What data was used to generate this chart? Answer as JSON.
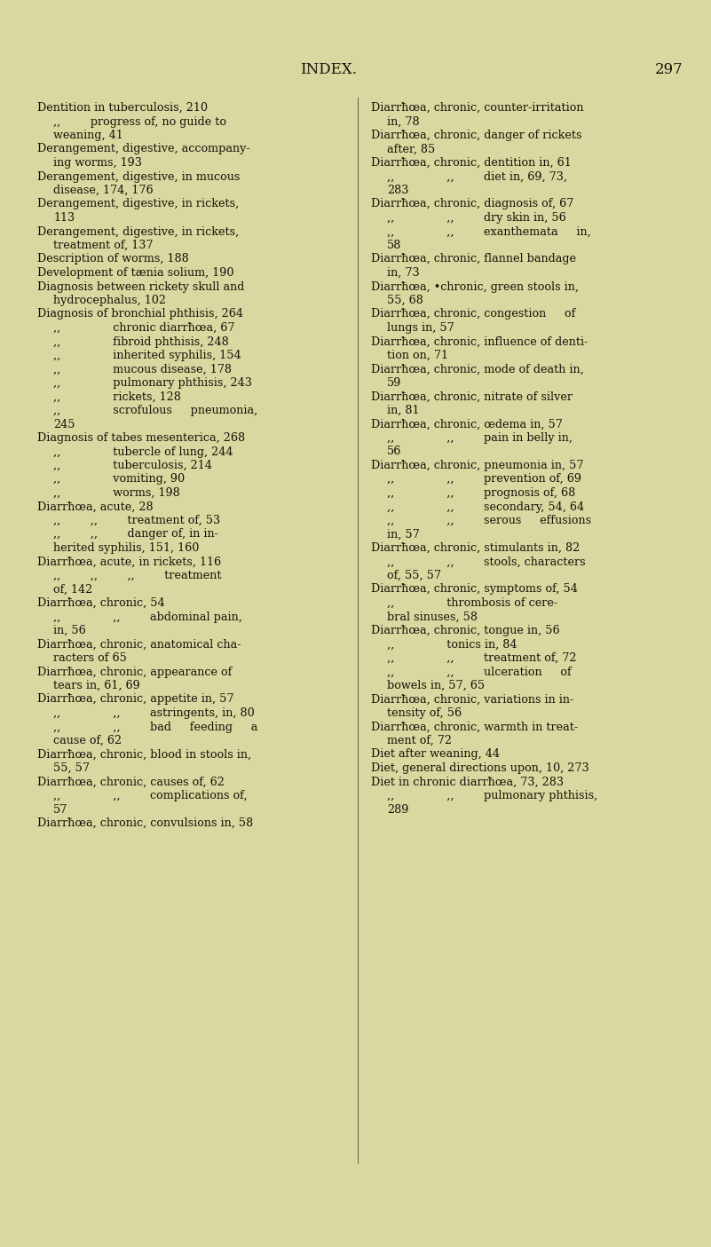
{
  "bg_color": "#d8d8a0",
  "text_color": "#1a1008",
  "title": "INDEX.",
  "page_num": "297",
  "title_fontsize": 12,
  "body_fontsize": 9.2,
  "left_col_lines": [
    [
      "Dentition in tuberculosis, 210",
      0
    ],
    [
      ",,    progress of, no guide to",
      1
    ],
    [
      "weaning, 41",
      1
    ],
    [
      "Derangement, digestive, accompany-",
      0
    ],
    [
      "ing worms, 193",
      1
    ],
    [
      "Derangement, digestive, in mucous",
      0
    ],
    [
      "disease, 174, 176",
      1
    ],
    [
      "Derangement, digestive, in rickets,",
      0
    ],
    [
      "113",
      1
    ],
    [
      "Derangement, digestive, in rickets,",
      0
    ],
    [
      "treatment of, 137",
      1
    ],
    [
      "Description of worms, 188",
      0
    ],
    [
      "Development of tænia solium, 190",
      0
    ],
    [
      "Diagnosis between rickety skull and",
      0
    ],
    [
      "hydrocephalus, 102",
      1
    ],
    [
      "Diagnosis of bronchial phthisis, 264",
      0
    ],
    [
      ",,      chronic diarrħœa, 67",
      1
    ],
    [
      ",,      fibroid phthisis, 248",
      1
    ],
    [
      ",,      inherited syphilis, 154",
      1
    ],
    [
      ",,      mucous disease, 178",
      1
    ],
    [
      ",,      pulmonary phthisis, 243",
      1
    ],
    [
      ",,      rickets, 128",
      1
    ],
    [
      ",,      scrofulous   pneumonia,",
      1
    ],
    [
      "245",
      1
    ],
    [
      "Diagnosis of tabes mesenterica, 268",
      0
    ],
    [
      ",,      tubercle of lung, 244",
      1
    ],
    [
      ",,      tuberculosis, 214",
      1
    ],
    [
      ",,      vomiting, 90",
      1
    ],
    [
      ",,      worms, 198",
      1
    ],
    [
      "Diarrħœa, acute, 28",
      0
    ],
    [
      ",,    ,,    treatment of, 53",
      1
    ],
    [
      ",,    ,,    danger of, in in-",
      1
    ],
    [
      "herited syphilis, 151, 160",
      1
    ],
    [
      "Diarrħœa, acute, in rickets, 116",
      0
    ],
    [
      ",,    ,,    ,,    treatment",
      1
    ],
    [
      "of, 142",
      1
    ],
    [
      "Diarrħœa, chronic, 54",
      0
    ],
    [
      ",,      ,,    abdominal pain,",
      1
    ],
    [
      "in, 56",
      1
    ],
    [
      "Diarrħœa, chronic, anatomical cha-",
      0
    ],
    [
      "racters of 65",
      1
    ],
    [
      "Diarrħœa, chronic, appearance of",
      0
    ],
    [
      "tears in, 61, 69",
      1
    ],
    [
      "Diarrħœa, chronic, appetite in, 57",
      0
    ],
    [
      ",,      ,,    astringents, in, 80",
      1
    ],
    [
      ",,      ,,    bad   feeding   a",
      1
    ],
    [
      "cause of, 62",
      1
    ],
    [
      "Diarrħœa, chronic, blood in stools in,",
      0
    ],
    [
      "55, 57",
      1
    ],
    [
      "Diarrħœa, chronic, causes of, 62",
      0
    ],
    [
      ",,      ,,    complications of,",
      1
    ],
    [
      "57",
      1
    ],
    [
      "Diarrħœa, chronic, convulsions in, 58",
      0
    ]
  ],
  "right_col_lines": [
    [
      "Diarrħœa, chronic, counter-irritation",
      0
    ],
    [
      "in, 78",
      1
    ],
    [
      "Diarrħœa, chronic, danger of rickets",
      0
    ],
    [
      "after, 85",
      1
    ],
    [
      "Diarrħœa, chronic, dentition in, 61",
      0
    ],
    [
      ",,      ,,    diet in, 69, 73,",
      1
    ],
    [
      "283",
      1
    ],
    [
      "Diarrħœa, chronic, diagnosis of, 67",
      0
    ],
    [
      ",,      ,,    dry skin in, 56",
      1
    ],
    [
      ",,      ,,    exanthemata   in,",
      1
    ],
    [
      "58",
      1
    ],
    [
      "Diarrħœa, chronic, flannel bandage",
      0
    ],
    [
      "in, 73",
      1
    ],
    [
      "Diarrħœa, •chronic, green stools in,",
      0
    ],
    [
      "55, 68",
      1
    ],
    [
      "Diarrħœa, chronic, congestion   of",
      0
    ],
    [
      "lungs in, 57",
      1
    ],
    [
      "Diarrħœa, chronic, influence of denti-",
      0
    ],
    [
      "tion on, 71",
      1
    ],
    [
      "Diarrħœa, chronic, mode of death in,",
      0
    ],
    [
      "59",
      1
    ],
    [
      "Diarrħœa, chronic, nitrate of silver",
      0
    ],
    [
      "in, 81",
      1
    ],
    [
      "Diarrħœa, chronic, œdema in, 57",
      0
    ],
    [
      ",,      ,,    pain in belly in,",
      1
    ],
    [
      "56",
      1
    ],
    [
      "Diarrħœa, chronic, pneumonia in, 57",
      0
    ],
    [
      ",,      ,,    prevention of, 69",
      1
    ],
    [
      ",,      ,,    prognosis of, 68",
      1
    ],
    [
      ",,      ,,    secondary, 54, 64",
      1
    ],
    [
      ",,      ,,    serous   effusions",
      1
    ],
    [
      "in, 57",
      1
    ],
    [
      "Diarrħœa, chronic, stimulants in, 82",
      0
    ],
    [
      ",,      ,,    stools, characters",
      1
    ],
    [
      "of, 55, 57",
      1
    ],
    [
      "Diarrħœa, chronic, symptoms of, 54",
      0
    ],
    [
      ",,      thrombosis of cere-",
      1
    ],
    [
      "bral sinuses, 58",
      1
    ],
    [
      "Diarrħœa, chronic, tongue in, 56",
      0
    ],
    [
      ",,      tonics in, 84",
      1
    ],
    [
      ",,      ,,    treatment of, 72",
      1
    ],
    [
      ",,      ,,    ulceration   of",
      1
    ],
    [
      "bowels in, 57, 65",
      1
    ],
    [
      "Diarrħœa, chronic, variations in in-",
      0
    ],
    [
      "tensity of, 56",
      1
    ],
    [
      "Diarrħœa, chronic, warmth in treat-",
      0
    ],
    [
      "ment of, 72",
      1
    ],
    [
      "Diet after weaning, 44",
      0
    ],
    [
      "Diet, general directions upon, 10, 273",
      0
    ],
    [
      "Diet in chronic diarrħœa, 73, 283",
      0
    ],
    [
      ",,      ,,    pulmonary phthisis,",
      1
    ],
    [
      "289",
      1
    ]
  ]
}
